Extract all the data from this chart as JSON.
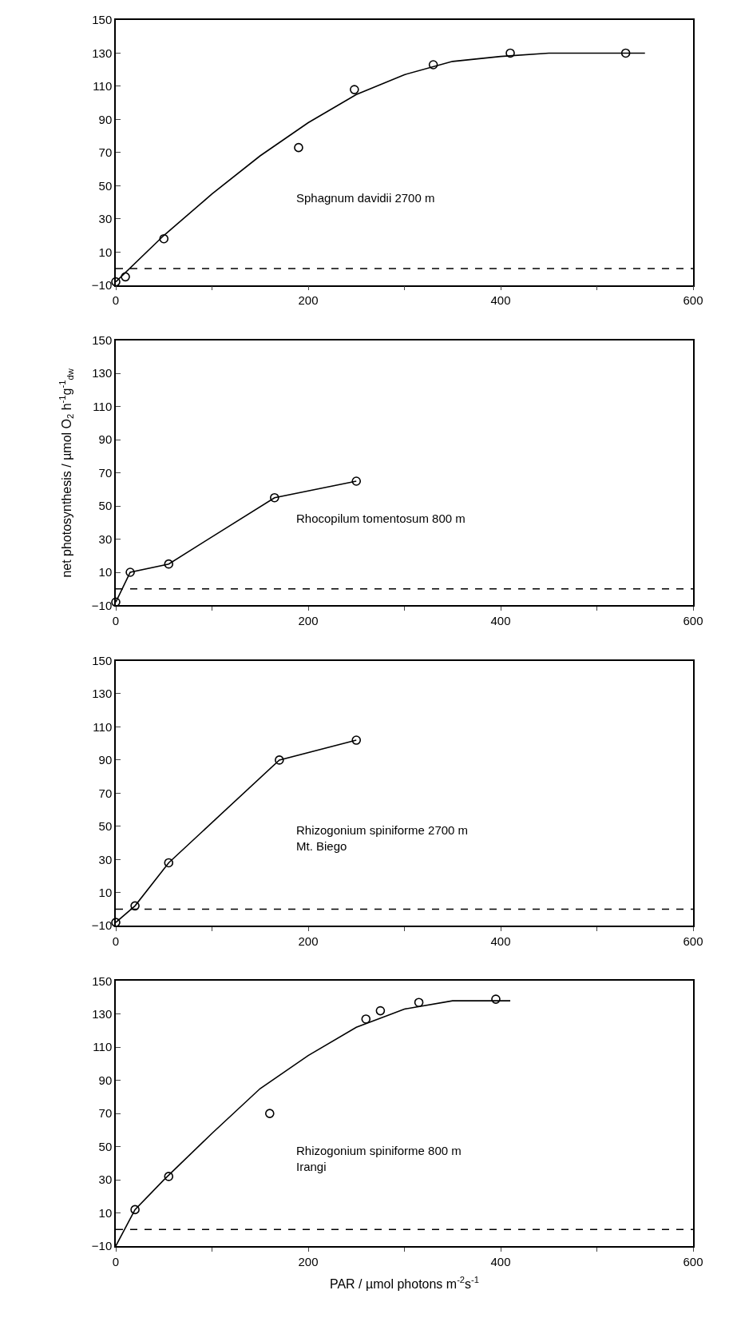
{
  "chart_data": [
    {
      "type": "scatter",
      "xlim": [
        0,
        600
      ],
      "ylim": [
        -10,
        150
      ],
      "xticks": [
        0,
        {
          "value": 100,
          "label": null
        },
        200,
        {
          "value": 300,
          "label": null
        },
        400,
        {
          "value": 500,
          "label": null
        },
        600
      ],
      "yticks": [
        -10,
        10,
        30,
        50,
        70,
        90,
        110,
        130,
        150
      ],
      "grid": false,
      "annotations": [
        "Sphagnum davidii 2700 m"
      ],
      "ref_lines": [
        {
          "axis": "y",
          "value": 0,
          "line_style": "dashed",
          "color": "#000000"
        }
      ],
      "series": [
        {
          "marker": "circle",
          "color": "#000000",
          "x": [
            0,
            10,
            50,
            190,
            248,
            330,
            410,
            530
          ],
          "values": [
            -8,
            -5,
            18,
            73,
            108,
            123,
            130,
            130
          ]
        },
        {
          "type": "line",
          "marker": "none",
          "color": "#000000",
          "x": [
            0,
            50,
            100,
            150,
            200,
            250,
            300,
            350,
            400,
            450,
            550
          ],
          "values": [
            -8,
            20,
            45,
            68,
            88,
            105,
            117,
            125,
            128,
            130,
            130
          ]
        }
      ]
    },
    {
      "type": "line",
      "ylabel": "net photosynthesis / µmol O$_{2}$ h$^{-1}$g$^{-1}$$_{dw}$",
      "xlim": [
        0,
        600
      ],
      "ylim": [
        -10,
        150
      ],
      "xticks": [
        0,
        {
          "value": 100,
          "label": null
        },
        200,
        {
          "value": 300,
          "label": null
        },
        400,
        {
          "value": 500,
          "label": null
        },
        600
      ],
      "yticks": [
        -10,
        10,
        30,
        50,
        70,
        90,
        110,
        130,
        150
      ],
      "grid": false,
      "annotations": [
        "Rhocopilum tomentosum 800 m"
      ],
      "ref_lines": [
        {
          "axis": "y",
          "value": 0,
          "line_style": "dashed",
          "color": "#000000"
        }
      ],
      "series": [
        {
          "marker": "circle",
          "color": "#000000",
          "x": [
            0,
            15,
            55,
            165,
            250
          ],
          "values": [
            -8,
            10,
            15,
            55,
            65
          ]
        }
      ]
    },
    {
      "type": "line",
      "xlim": [
        0,
        600
      ],
      "ylim": [
        -10,
        150
      ],
      "xticks": [
        0,
        {
          "value": 100,
          "label": null
        },
        200,
        {
          "value": 300,
          "label": null
        },
        400,
        {
          "value": 500,
          "label": null
        },
        600
      ],
      "yticks": [
        -10,
        10,
        30,
        50,
        70,
        90,
        110,
        130,
        150
      ],
      "grid": false,
      "annotations": [
        "Rhizogonium spiniforme 2700 m\nMt. Biego"
      ],
      "ref_lines": [
        {
          "axis": "y",
          "value": 0,
          "line_style": "dashed",
          "color": "#000000"
        }
      ],
      "series": [
        {
          "marker": "circle",
          "color": "#000000",
          "x": [
            0,
            20,
            55,
            170,
            250
          ],
          "values": [
            -8,
            2,
            28,
            90,
            102
          ]
        }
      ]
    },
    {
      "type": "scatter",
      "xlabel": "PAR / µmol photons m$^{-2}$s$^{-1}$",
      "xlim": [
        0,
        600
      ],
      "ylim": [
        -10,
        150
      ],
      "xticks": [
        0,
        {
          "value": 100,
          "label": null
        },
        200,
        {
          "value": 300,
          "label": null
        },
        400,
        {
          "value": 500,
          "label": null
        },
        600
      ],
      "yticks": [
        -10,
        10,
        30,
        50,
        70,
        90,
        110,
        130,
        150
      ],
      "grid": false,
      "annotations": [
        "Rhizogonium spiniforme 800 m\nIrangi"
      ],
      "ref_lines": [
        {
          "axis": "y",
          "value": 0,
          "line_style": "dashed",
          "color": "#000000"
        }
      ],
      "series": [
        {
          "marker": "circle",
          "color": "#000000",
          "x": [
            20,
            55,
            160,
            260,
            275,
            315,
            395
          ],
          "values": [
            12,
            32,
            70,
            127,
            132,
            137,
            139
          ]
        },
        {
          "type": "line",
          "marker": "none",
          "color": "#000000",
          "x": [
            0,
            20,
            50,
            100,
            150,
            200,
            250,
            300,
            350,
            410
          ],
          "values": [
            -10,
            12,
            30,
            58,
            85,
            105,
            122,
            133,
            138,
            138
          ]
        }
      ]
    }
  ]
}
